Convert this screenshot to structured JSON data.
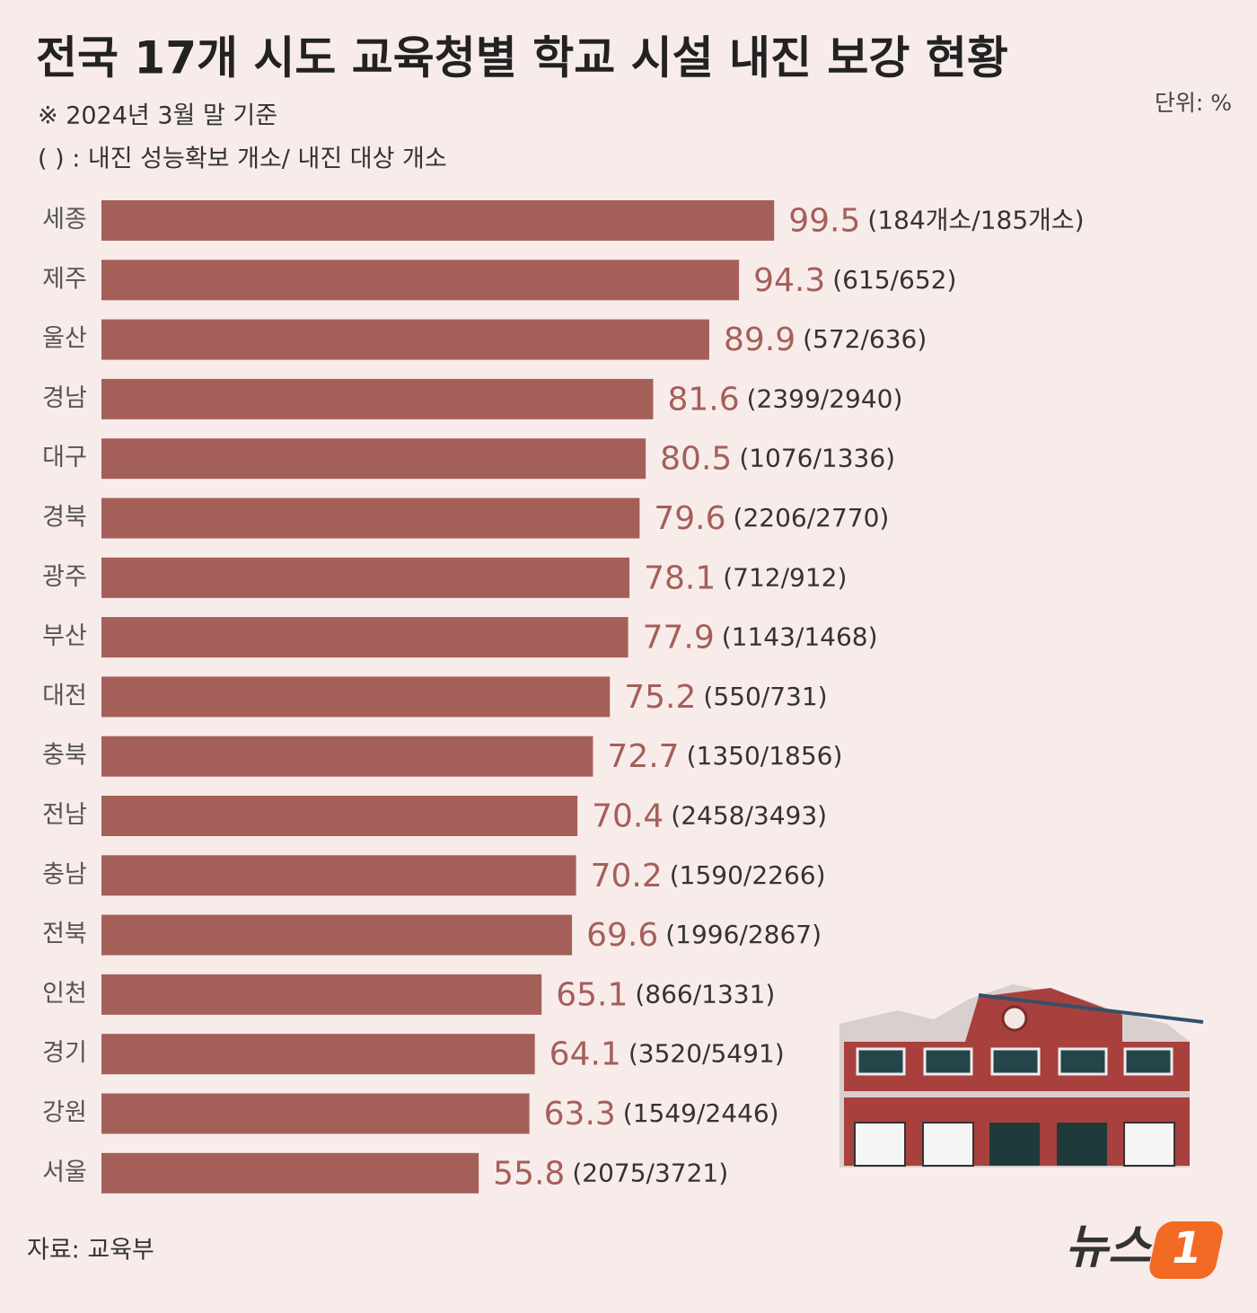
{
  "chart_data": {
    "type": "bar",
    "orientation": "horizontal",
    "title": "전국 17개 시도 교육청별 학교 시설 내진 보강 현황",
    "notes": [
      "※ 2024년 3월 말 기준",
      "(    ) : 내진 성능확보 개소/ 내진 대상 개소"
    ],
    "unit": "단위: %",
    "source": "자료: 교육부",
    "brand": [
      "뉴스",
      "1"
    ],
    "color": "#a55f59",
    "categories": [
      "세종",
      "제주",
      "울산",
      "경남",
      "대구",
      "경북",
      "광주",
      "부산",
      "대전",
      "충북",
      "전남",
      "충남",
      "전북",
      "인천",
      "경기",
      "강원",
      "서울"
    ],
    "values": [
      99.5,
      94.3,
      89.9,
      81.6,
      80.5,
      79.6,
      78.1,
      77.9,
      75.2,
      72.7,
      70.4,
      70.2,
      69.6,
      65.1,
      64.1,
      63.3,
      55.8
    ],
    "counts": [
      "(184개소/185개소)",
      "(615/652)",
      "(572/636)",
      "(2399/2940)",
      "(1076/1336)",
      "(2206/2770)",
      "(712/912)",
      "(1143/1468)",
      "(550/731)",
      "(1350/1856)",
      "(2458/3493)",
      "(1590/2266)",
      "(1996/2867)",
      "(866/1331)",
      "(3520/5491)",
      "(1549/2446)",
      "(2075/3721)"
    ]
  }
}
